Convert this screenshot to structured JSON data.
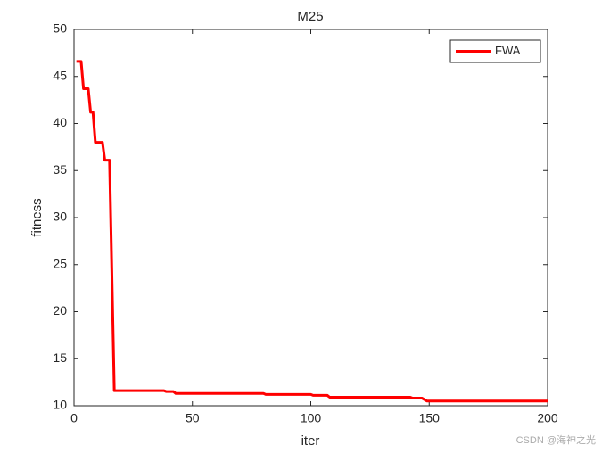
{
  "chart_data": {
    "type": "line",
    "title": "M25",
    "x_label": "iter",
    "y_label": "fitness",
    "x": [
      1,
      3,
      4,
      6,
      7,
      8,
      9,
      12,
      13,
      15,
      17,
      38,
      39,
      42,
      43,
      80,
      81,
      100,
      101,
      107,
      108,
      142,
      143,
      147,
      149,
      200
    ],
    "series": [
      {
        "name": "FWA",
        "color": "#ff0000",
        "values": [
          46.6,
          46.6,
          43.7,
          43.7,
          41.2,
          41.2,
          38.0,
          38.0,
          36.1,
          36.1,
          11.6,
          11.6,
          11.5,
          11.5,
          11.3,
          11.3,
          11.2,
          11.2,
          11.1,
          11.1,
          10.9,
          10.9,
          10.8,
          10.8,
          10.5,
          10.5
        ]
      }
    ],
    "xlim": [
      0,
      200
    ],
    "xticks": [
      0,
      50,
      100,
      150,
      200
    ],
    "ylim": [
      10,
      50
    ],
    "yticks": [
      10,
      15,
      20,
      25,
      30,
      35,
      40,
      45,
      50
    ],
    "grid": false,
    "legend": "northeast"
  },
  "watermark": "CSDN @海神之光"
}
